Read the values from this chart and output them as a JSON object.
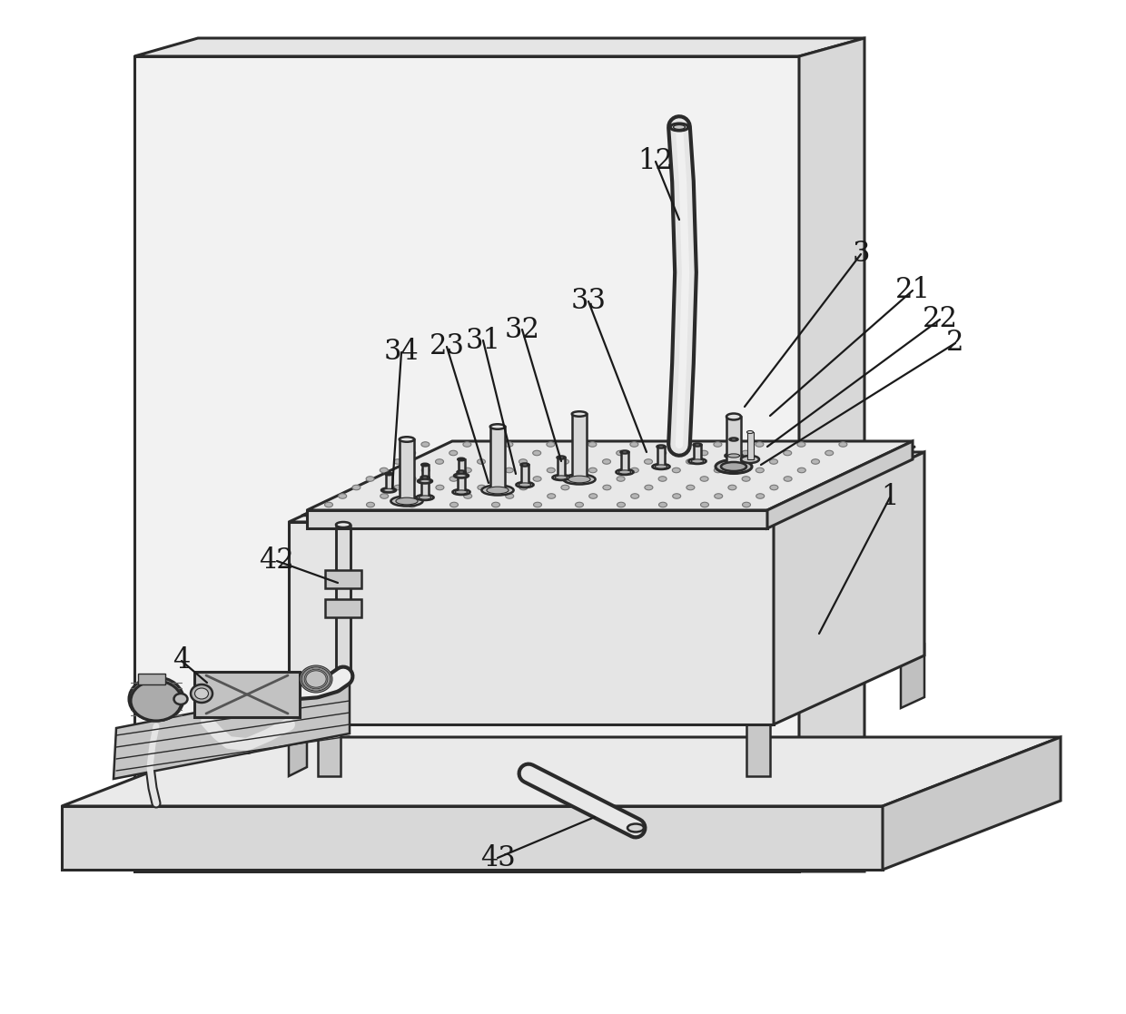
{
  "bg_color": "#ffffff",
  "line_color": "#2a2a2a",
  "label_color": "#1a1a1a",
  "label_fontsize": 22,
  "lw": 1.8,
  "lw2": 2.2,
  "face_light": "#f5f5f5",
  "face_mid": "#e0e0e0",
  "face_dark": "#cccccc",
  "face_darker": "#b8b8b8",
  "annotations": [
    [
      "1",
      980,
      548,
      902,
      698
    ],
    [
      "2",
      1052,
      378,
      838,
      512
    ],
    [
      "3",
      948,
      280,
      820,
      448
    ],
    [
      "4",
      200,
      728,
      228,
      752
    ],
    [
      "12",
      722,
      178,
      748,
      242
    ],
    [
      "21",
      1005,
      320,
      848,
      458
    ],
    [
      "22",
      1035,
      352,
      845,
      492
    ],
    [
      "23",
      492,
      382,
      538,
      532
    ],
    [
      "31",
      532,
      375,
      568,
      522
    ],
    [
      "32",
      575,
      363,
      618,
      508
    ],
    [
      "33",
      648,
      332,
      712,
      498
    ],
    [
      "34",
      442,
      388,
      432,
      538
    ],
    [
      "42",
      305,
      618,
      372,
      642
    ],
    [
      "43",
      548,
      945,
      655,
      900
    ]
  ]
}
